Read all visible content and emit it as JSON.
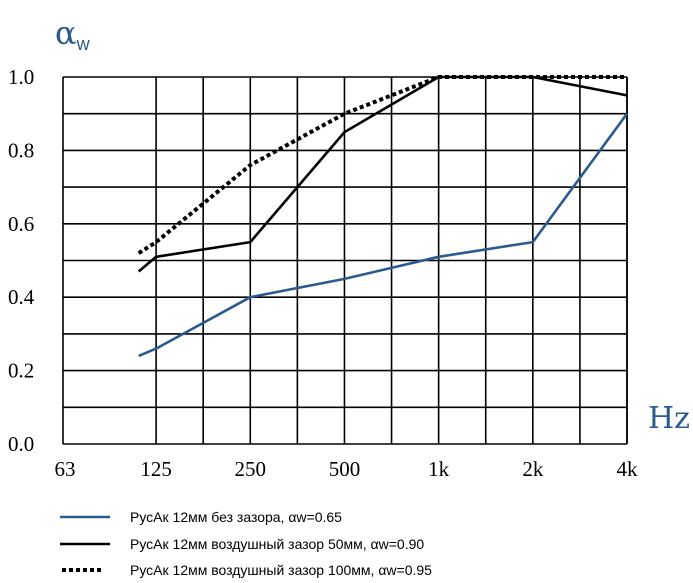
{
  "chart_data": {
    "type": "line",
    "ylabel": "αw",
    "xlabel": "Hz",
    "ylim": [
      0,
      1.0
    ],
    "y_ticks": [
      "0.0",
      "0.2",
      "0.4",
      "0.6",
      "0.8",
      "1.0"
    ],
    "x_ticks": [
      "63",
      "125",
      "250",
      "500",
      "1k",
      "2k",
      "4k"
    ],
    "x_scale": "log",
    "grid": true,
    "legend_position": "bottom",
    "series": [
      {
        "name": "РусАк 12мм без зазора, αw=0.65",
        "color": "#2a5b8c",
        "style": "solid",
        "x": [
          110,
          125,
          250,
          500,
          1000,
          2000,
          4000
        ],
        "y": [
          0.24,
          0.26,
          0.4,
          0.45,
          0.51,
          0.55,
          0.9
        ]
      },
      {
        "name": "РусАк 12мм воздушный зазор 50мм, αw=0.90",
        "color": "#000000",
        "style": "solid",
        "x": [
          110,
          125,
          250,
          500,
          1000,
          2000,
          4000
        ],
        "y": [
          0.47,
          0.51,
          0.55,
          0.85,
          1.0,
          1.0,
          0.95
        ]
      },
      {
        "name": "РусАк 12мм воздушный зазор 100мм, αw=0.95",
        "color": "#000000",
        "style": "dotted",
        "x": [
          110,
          125,
          250,
          500,
          1000,
          2000,
          4000
        ],
        "y": [
          0.52,
          0.55,
          0.76,
          0.9,
          1.0,
          1.0,
          1.0
        ]
      }
    ]
  }
}
